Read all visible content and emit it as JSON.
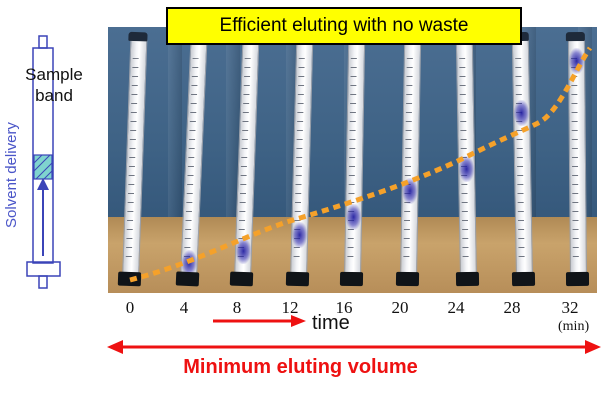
{
  "banner": {
    "text": "Efficient eluting with no waste"
  },
  "syringe": {
    "sample_label_line1": "Sample",
    "sample_label_line2": "band",
    "solvent_label": "Solvent delivery"
  },
  "time_axis": {
    "ticks": [
      "0",
      "4",
      "8",
      "12",
      "16",
      "20",
      "24",
      "28",
      "32"
    ],
    "unit": "(min)",
    "arrow_label": "time"
  },
  "volume_label": "Minimum eluting volume",
  "colors": {
    "banner_bg": "#ffff00",
    "curve": "#f5a12a",
    "arrow_red": "#ee1111",
    "syringe_blue": "#3b44b8",
    "band_fill": "#7fd4cf"
  }
}
